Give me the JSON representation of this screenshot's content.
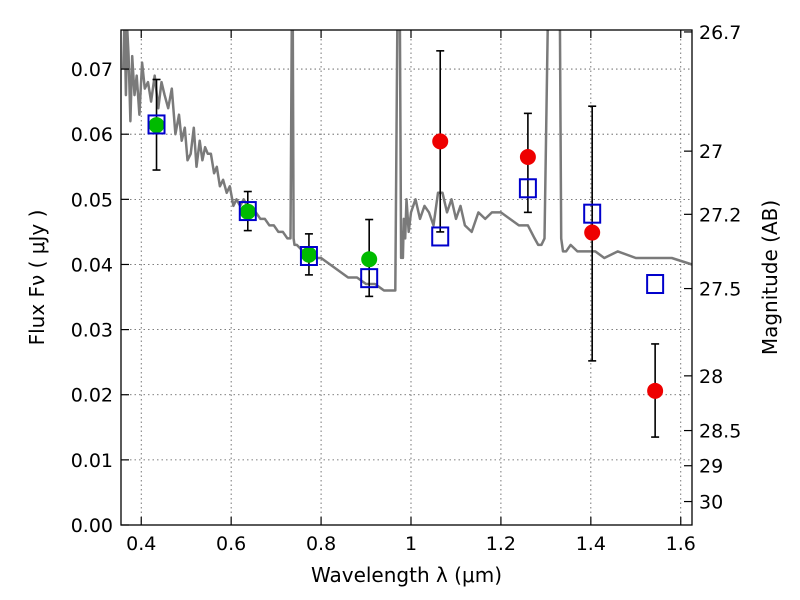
{
  "chart_data": {
    "type": "scatter",
    "title": "",
    "xlabel": "Wavelength  λ (μm)",
    "ylabel": "Flux  Fν  ( μJy )",
    "ylabel_right": "Magnitude (AB)",
    "xlim": [
      0.355,
      1.625
    ],
    "ylim": [
      0.0,
      0.076
    ],
    "x_ticks": [
      0.4,
      0.6,
      0.8,
      1.0,
      1.2,
      1.4,
      1.6
    ],
    "x_tick_labels": [
      "0.4",
      "0.6",
      "0.8",
      "1",
      "1.2",
      "1.4",
      "1.6"
    ],
    "y_ticks": [
      0.0,
      0.01,
      0.02,
      0.03,
      0.04,
      0.05,
      0.06,
      0.07
    ],
    "y_tick_labels": [
      "0.00",
      "0.01",
      "0.02",
      "0.03",
      "0.04",
      "0.05",
      "0.06",
      "0.07"
    ],
    "right_ticks": [
      {
        "flux": 0.0757,
        "label": "26.7"
      },
      {
        "flux": 0.0574,
        "label": "27"
      },
      {
        "flux": 0.0477,
        "label": "27.2"
      },
      {
        "flux": 0.0363,
        "label": "27.5"
      },
      {
        "flux": 0.0229,
        "label": "28"
      },
      {
        "flux": 0.0145,
        "label": "28.5"
      },
      {
        "flux": 0.0091,
        "label": "29"
      },
      {
        "flux": 0.0036,
        "label": "30"
      }
    ],
    "grid": true,
    "colors": {
      "template": "#7a7a7a",
      "green": "#00bb00",
      "red": "#ee0000",
      "model_box": "#0000cc",
      "errorbar": "#000000"
    },
    "series": [
      {
        "kind": "line",
        "x": [
          0.36,
          0.363,
          0.366,
          0.369,
          0.372,
          0.376,
          0.38,
          0.385,
          0.39,
          0.396,
          0.402,
          0.408,
          0.415,
          0.422,
          0.43,
          0.438,
          0.445,
          0.452,
          0.46,
          0.468,
          0.476,
          0.484,
          0.49,
          0.497,
          0.503,
          0.51,
          0.517,
          0.523,
          0.53,
          0.536,
          0.542,
          0.548,
          0.555,
          0.562,
          0.568,
          0.575,
          0.582,
          0.59,
          0.597,
          0.605,
          0.612,
          0.62,
          0.628,
          0.636,
          0.645,
          0.655,
          0.665,
          0.675,
          0.685,
          0.695,
          0.705,
          0.715,
          0.725,
          0.732,
          0.735,
          0.737,
          0.739,
          0.741,
          0.746,
          0.76,
          0.78,
          0.8,
          0.82,
          0.84,
          0.86,
          0.88,
          0.9,
          0.92,
          0.94,
          0.955,
          0.965,
          0.97,
          0.975,
          0.978,
          0.98,
          0.982,
          0.984,
          0.987,
          0.99,
          0.995,
          1.0,
          1.01,
          1.02,
          1.03,
          1.04,
          1.05,
          1.06,
          1.07,
          1.08,
          1.09,
          1.1,
          1.11,
          1.12,
          1.135,
          1.15,
          1.165,
          1.18,
          1.2,
          1.22,
          1.24,
          1.26,
          1.275,
          1.283,
          1.29,
          1.297,
          1.305,
          1.315,
          1.325,
          1.331,
          1.334,
          1.338,
          1.345,
          1.355,
          1.37,
          1.39,
          1.41,
          1.43,
          1.46,
          1.5,
          1.54,
          1.58,
          1.625
        ],
        "y": [
          0.07,
          0.078,
          0.066,
          0.076,
          0.072,
          0.062,
          0.072,
          0.066,
          0.069,
          0.063,
          0.071,
          0.067,
          0.068,
          0.065,
          0.069,
          0.064,
          0.068,
          0.066,
          0.064,
          0.067,
          0.06,
          0.063,
          0.059,
          0.061,
          0.056,
          0.057,
          0.061,
          0.055,
          0.059,
          0.056,
          0.058,
          0.057,
          0.057,
          0.054,
          0.055,
          0.052,
          0.053,
          0.051,
          0.052,
          0.049,
          0.05,
          0.049,
          0.05,
          0.049,
          0.049,
          0.048,
          0.047,
          0.047,
          0.046,
          0.046,
          0.045,
          0.045,
          0.044,
          0.044,
          0.08,
          0.08,
          0.044,
          0.043,
          0.043,
          0.042,
          0.041,
          0.041,
          0.04,
          0.039,
          0.038,
          0.038,
          0.037,
          0.037,
          0.036,
          0.036,
          0.036,
          0.08,
          0.08,
          0.041,
          0.045,
          0.041,
          0.047,
          0.044,
          0.05,
          0.045,
          0.048,
          0.05,
          0.047,
          0.049,
          0.048,
          0.046,
          0.051,
          0.051,
          0.048,
          0.05,
          0.047,
          0.049,
          0.046,
          0.045,
          0.048,
          0.047,
          0.048,
          0.048,
          0.047,
          0.046,
          0.046,
          0.044,
          0.043,
          0.043,
          0.044,
          0.08,
          0.08,
          0.08,
          0.08,
          0.044,
          0.042,
          0.042,
          0.043,
          0.042,
          0.042,
          0.042,
          0.041,
          0.042,
          0.041,
          0.041,
          0.041,
          0.04
        ]
      },
      {
        "kind": "points",
        "marker": "circle-green",
        "x": [
          0.434,
          0.637,
          0.773,
          0.907
        ],
        "y": [
          0.0614,
          0.0481,
          0.0415,
          0.0408
        ],
        "yerr_low": [
          0.0545,
          0.0452,
          0.0384,
          0.0351
        ],
        "yerr_high": [
          0.0684,
          0.0512,
          0.0447,
          0.0469
        ]
      },
      {
        "kind": "points",
        "marker": "circle-red",
        "x": [
          1.065,
          1.26,
          1.403,
          1.543
        ],
        "y": [
          0.0589,
          0.0565,
          0.0449,
          0.0206
        ],
        "yerr_low": [
          0.045,
          0.048,
          0.0252,
          0.0135
        ],
        "yerr_high": [
          0.0728,
          0.0632,
          0.0643,
          0.0278
        ]
      },
      {
        "kind": "points",
        "marker": "square-blue-open",
        "x": [
          0.434,
          0.637,
          0.773,
          0.907,
          1.065,
          1.26,
          1.403,
          1.543
        ],
        "y": [
          0.0615,
          0.0482,
          0.0413,
          0.0379,
          0.0443,
          0.0517,
          0.0478,
          0.037
        ]
      }
    ]
  }
}
